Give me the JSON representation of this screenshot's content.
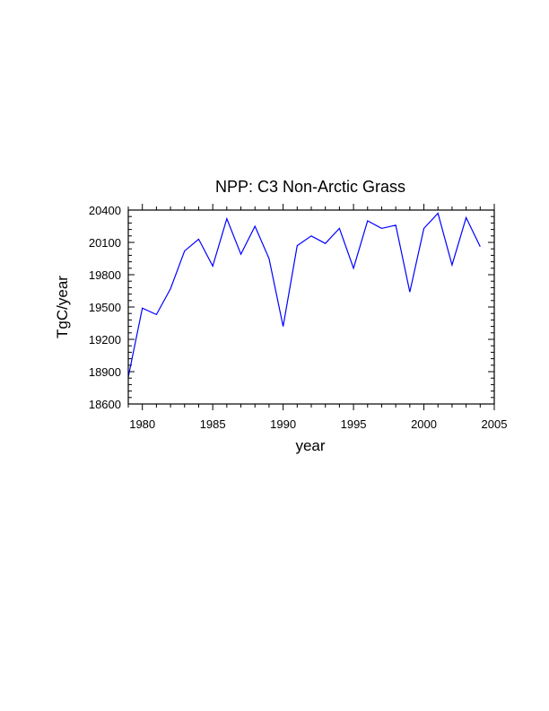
{
  "chart_data": {
    "type": "line",
    "title": "NPP: C3 Non-Arctic Grass",
    "xlabel": "year",
    "ylabel": "TgC/year",
    "xlim": [
      1979,
      2005
    ],
    "ylim": [
      18600,
      20400
    ],
    "xticks": [
      1980,
      1985,
      1990,
      1995,
      2000,
      2005
    ],
    "yticks": [
      18600,
      18900,
      19200,
      19500,
      19800,
      20100,
      20400
    ],
    "grid": false,
    "line_color": "#0000ff",
    "x": [
      1979,
      1980,
      1981,
      1982,
      1983,
      1984,
      1985,
      1986,
      1987,
      1988,
      1989,
      1990,
      1991,
      1992,
      1993,
      1994,
      1995,
      1996,
      1997,
      1998,
      1999,
      2000,
      2001,
      2002,
      2003,
      2004
    ],
    "values": [
      18850,
      19490,
      19430,
      19670,
      20020,
      20130,
      19880,
      20320,
      19990,
      20250,
      19950,
      19320,
      20070,
      20160,
      20090,
      20230,
      19860,
      20300,
      20230,
      20260,
      19640,
      20230,
      20370,
      19890,
      20330,
      20060
    ]
  }
}
